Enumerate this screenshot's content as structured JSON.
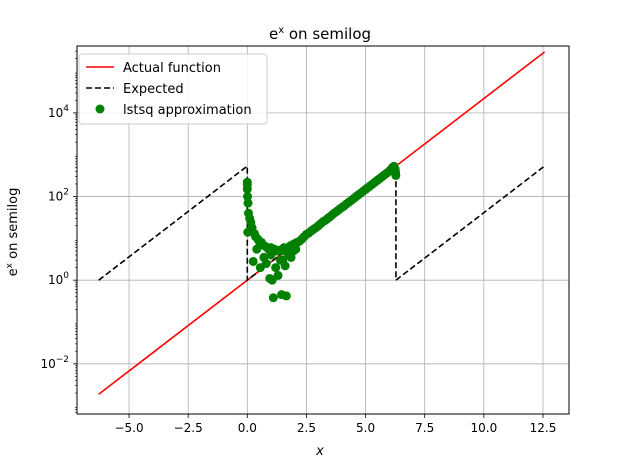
{
  "chart_data": {
    "type": "line",
    "title_base": "e",
    "title_sup": "x",
    "title_rest": " on semilog",
    "xlabel": "x",
    "ylabel_base": "e",
    "ylabel_sup": "x",
    "ylabel_rest": " on semilog",
    "y_scale": "log",
    "xlim": [
      -7.2,
      13.6
    ],
    "ylim_log10": [
      -3.2,
      5.6
    ],
    "x_ticks": [
      -5.0,
      -2.5,
      0.0,
      2.5,
      5.0,
      7.5,
      10.0,
      12.5
    ],
    "x_tick_labels": [
      "−5.0",
      "−2.5",
      "0.0",
      "2.5",
      "5.0",
      "7.5",
      "10.0",
      "12.5"
    ],
    "y_ticks_log10": [
      -2,
      0,
      2,
      4
    ],
    "y_tick_labels": [
      {
        "base": "10",
        "exp": "−2"
      },
      {
        "base": "10",
        "exp": "0"
      },
      {
        "base": "10",
        "exp": "2"
      },
      {
        "base": "10",
        "exp": "4"
      }
    ],
    "grid": true,
    "legend_position": "top-left",
    "series": [
      {
        "name": "Actual function",
        "style": "solid",
        "color": "#ff0000",
        "x_range": [
          -6.283,
          12.566
        ],
        "function": "exp"
      },
      {
        "name": "Expected",
        "style": "dashed",
        "color": "#000000",
        "x_range": [
          -6.283,
          12.566
        ],
        "function": "periodic-exp",
        "period": 6.283
      },
      {
        "name": "lstsq approximation",
        "style": "markers",
        "color": "#008000",
        "points": [
          [
            0.0,
            220
          ],
          [
            0.0,
            190
          ],
          [
            0.0,
            150
          ],
          [
            0.01,
            100
          ],
          [
            0.02,
            14
          ],
          [
            0.03,
            70
          ],
          [
            0.05,
            40
          ],
          [
            0.1,
            30
          ],
          [
            0.15,
            24
          ],
          [
            0.2,
            18
          ],
          [
            0.25,
            2.8
          ],
          [
            0.3,
            13
          ],
          [
            0.35,
            11
          ],
          [
            0.4,
            5.5
          ],
          [
            0.45,
            9.5
          ],
          [
            0.5,
            8.5
          ],
          [
            0.55,
            2.0
          ],
          [
            0.6,
            8.0
          ],
          [
            0.65,
            7.0
          ],
          [
            0.7,
            3.5
          ],
          [
            0.75,
            6.5
          ],
          [
            0.8,
            2.5
          ],
          [
            0.85,
            6.0
          ],
          [
            0.9,
            5.5
          ],
          [
            0.95,
            1.1
          ],
          [
            1.0,
            6.0
          ],
          [
            1.0,
            4.0
          ],
          [
            1.05,
            1.0
          ],
          [
            1.1,
            0.38
          ],
          [
            1.15,
            5.5
          ],
          [
            1.2,
            2.0
          ],
          [
            1.25,
            5.0
          ],
          [
            1.3,
            1.3
          ],
          [
            1.35,
            5.2
          ],
          [
            1.4,
            3.0
          ],
          [
            1.45,
            0.45
          ],
          [
            1.5,
            5.0
          ],
          [
            1.5,
            3.0
          ],
          [
            1.55,
            6.0
          ],
          [
            1.6,
            2.2
          ],
          [
            1.65,
            0.42
          ],
          [
            1.7,
            5.5
          ],
          [
            1.75,
            4.0
          ],
          [
            1.8,
            6.5
          ],
          [
            1.85,
            3.5
          ],
          [
            1.9,
            7.0
          ],
          [
            1.95,
            5.0
          ],
          [
            2.0,
            7.5
          ],
          [
            2.05,
            5.5
          ],
          [
            2.1,
            8.0
          ],
          [
            2.2,
            8.5
          ],
          [
            2.3,
            9.5
          ],
          [
            2.4,
            11
          ],
          [
            2.5,
            12.5
          ],
          [
            2.6,
            13.5
          ],
          [
            2.7,
            15
          ],
          [
            2.8,
            16.5
          ],
          [
            2.9,
            18
          ],
          [
            3.0,
            20
          ],
          [
            3.1,
            22.5
          ],
          [
            3.2,
            25
          ],
          [
            3.3,
            27
          ],
          [
            3.4,
            30
          ],
          [
            3.5,
            33
          ],
          [
            3.6,
            37
          ],
          [
            3.7,
            41
          ],
          [
            3.8,
            45
          ],
          [
            3.9,
            50
          ],
          [
            4.0,
            55
          ],
          [
            4.1,
            60
          ],
          [
            4.2,
            67
          ],
          [
            4.3,
            74
          ],
          [
            4.4,
            81
          ],
          [
            4.5,
            90
          ],
          [
            4.6,
            100
          ],
          [
            4.7,
            110
          ],
          [
            4.8,
            121
          ],
          [
            4.9,
            134
          ],
          [
            5.0,
            148
          ],
          [
            5.1,
            164
          ],
          [
            5.2,
            181
          ],
          [
            5.3,
            200
          ],
          [
            5.4,
            221
          ],
          [
            5.5,
            245
          ],
          [
            5.6,
            270
          ],
          [
            5.7,
            299
          ],
          [
            5.8,
            330
          ],
          [
            5.9,
            365
          ],
          [
            6.0,
            403
          ],
          [
            6.05,
            430
          ],
          [
            6.1,
            460
          ],
          [
            6.15,
            500
          ],
          [
            6.2,
            530
          ],
          [
            6.25,
            450
          ],
          [
            6.27,
            380
          ],
          [
            6.28,
            320
          ]
        ]
      }
    ]
  }
}
